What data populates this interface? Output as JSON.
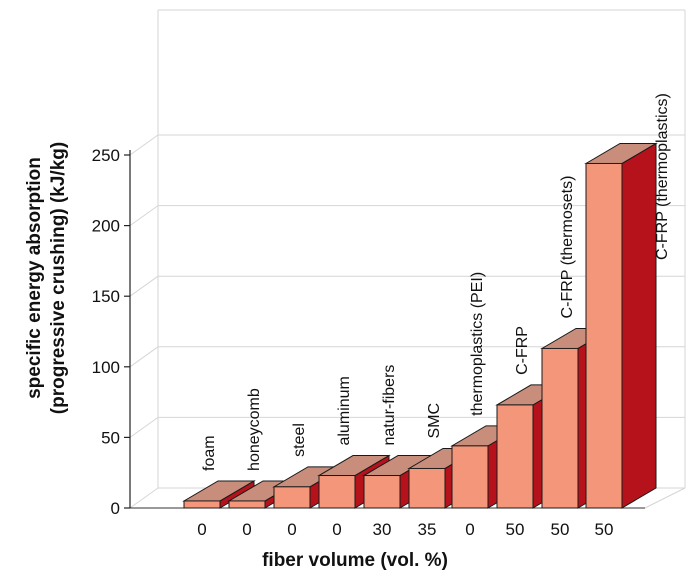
{
  "chart_data": {
    "type": "bar",
    "xlabel": "fiber volume (vol. %)",
    "ylabel_line1": "specific energy absorption",
    "ylabel_line2": "(progressive crushing) (kJ/kg)",
    "ylim": [
      0,
      250
    ],
    "yticks": [
      "0",
      "50",
      "100",
      "150",
      "200",
      "250"
    ],
    "grid": true,
    "categories": [
      "0",
      "0",
      "0",
      "0",
      "30",
      "35",
      "0",
      "50",
      "50",
      "50"
    ],
    "bar_labels": [
      "foam",
      "honeycomb",
      "steel",
      "aluminum",
      "natur-fibers",
      "SMC",
      "thermoplastics (PEI)",
      "C-FRP",
      "C-FRP (thermosets)",
      "C-FRP (thermoplastics)"
    ],
    "values": [
      5,
      5,
      15,
      23,
      23,
      28,
      44,
      73,
      113,
      244
    ]
  },
  "colors": {
    "front": "#f4967a",
    "top": "#c98e7b",
    "side": "#b5121b",
    "edge": "#1a1a1a",
    "grid": "#d6d6d6"
  }
}
